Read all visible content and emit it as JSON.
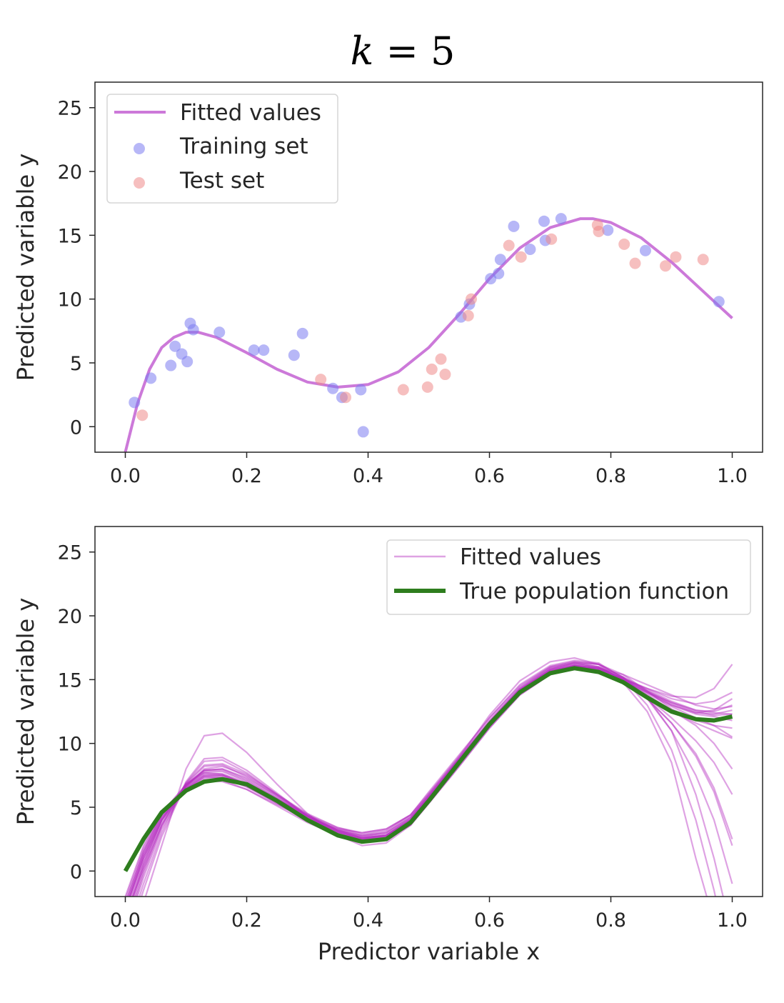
{
  "title": {
    "prefix": "k",
    "suffix": "= 5"
  },
  "chart_data": [
    {
      "type": "scatter",
      "xlabel": "",
      "ylabel": "Predicted variable y",
      "xlim": [
        -0.05,
        1.05
      ],
      "ylim": [
        -2,
        27
      ],
      "xticks": [
        "0.0",
        "0.2",
        "0.4",
        "0.6",
        "0.8",
        "1.0"
      ],
      "yticks": [
        "0",
        "5",
        "10",
        "15",
        "20",
        "25"
      ],
      "legend_position": "top-left",
      "legend": [
        "Fitted values",
        "Training set",
        "Test set"
      ],
      "colors": {
        "fitted": "#cc79d9",
        "training": "#7b7cf0",
        "test": "#ee8a8a"
      },
      "series": [
        {
          "name": "Fitted values",
          "kind": "line",
          "x": [
            0.0,
            0.02,
            0.04,
            0.06,
            0.08,
            0.1,
            0.12,
            0.15,
            0.2,
            0.25,
            0.3,
            0.35,
            0.4,
            0.45,
            0.5,
            0.55,
            0.6,
            0.65,
            0.7,
            0.75,
            0.77,
            0.8,
            0.85,
            0.9,
            0.95,
            1.0
          ],
          "y": [
            -2.0,
            1.8,
            4.5,
            6.2,
            7.0,
            7.4,
            7.4,
            7.0,
            5.8,
            4.5,
            3.5,
            3.1,
            3.3,
            4.3,
            6.2,
            8.8,
            11.6,
            14.0,
            15.6,
            16.3,
            16.3,
            16.0,
            14.8,
            12.9,
            10.7,
            8.5
          ]
        },
        {
          "name": "Training set",
          "kind": "scatter",
          "x": [
            0.015,
            0.042,
            0.075,
            0.082,
            0.093,
            0.102,
            0.107,
            0.112,
            0.155,
            0.212,
            0.228,
            0.278,
            0.292,
            0.342,
            0.357,
            0.388,
            0.392,
            0.553,
            0.567,
            0.602,
            0.615,
            0.618,
            0.64,
            0.667,
            0.69,
            0.692,
            0.718,
            0.795,
            0.857,
            0.978
          ],
          "y": [
            1.9,
            3.8,
            4.8,
            6.3,
            5.7,
            5.1,
            8.1,
            7.6,
            7.4,
            6.0,
            6.0,
            5.6,
            7.3,
            3.0,
            2.3,
            2.9,
            -0.4,
            8.6,
            9.6,
            11.6,
            12.0,
            13.1,
            15.7,
            13.9,
            16.1,
            14.6,
            16.3,
            15.4,
            13.8,
            9.8
          ]
        },
        {
          "name": "Test set",
          "kind": "scatter",
          "x": [
            0.028,
            0.322,
            0.363,
            0.458,
            0.498,
            0.505,
            0.52,
            0.527,
            0.565,
            0.57,
            0.632,
            0.652,
            0.702,
            0.778,
            0.78,
            0.822,
            0.84,
            0.89,
            0.907,
            0.952
          ],
          "y": [
            0.9,
            3.7,
            2.3,
            2.9,
            3.1,
            4.5,
            5.3,
            4.1,
            8.7,
            10.0,
            14.2,
            13.3,
            14.7,
            15.8,
            15.3,
            14.3,
            12.8,
            12.6,
            13.3,
            13.1
          ]
        }
      ]
    },
    {
      "type": "line",
      "xlabel": "Predictor variable x",
      "ylabel": "Predicted variable y",
      "xlim": [
        -0.05,
        1.05
      ],
      "ylim": [
        -2,
        27
      ],
      "xticks": [
        "0.0",
        "0.2",
        "0.4",
        "0.6",
        "0.8",
        "1.0"
      ],
      "yticks": [
        "0",
        "5",
        "10",
        "15",
        "20",
        "25"
      ],
      "legend_position": "top-right",
      "legend": [
        "Fitted values",
        "True population function"
      ],
      "colors": {
        "fitted": "#b530c0",
        "true": "#2e7d1e"
      },
      "true_function": {
        "x": [
          0.0,
          0.03,
          0.06,
          0.1,
          0.13,
          0.16,
          0.2,
          0.25,
          0.3,
          0.35,
          0.39,
          0.43,
          0.47,
          0.5,
          0.55,
          0.6,
          0.65,
          0.7,
          0.74,
          0.78,
          0.82,
          0.86,
          0.9,
          0.94,
          0.97,
          1.0
        ],
        "y": [
          0.0,
          2.5,
          4.6,
          6.3,
          7.0,
          7.2,
          6.8,
          5.5,
          4.0,
          2.8,
          2.3,
          2.5,
          3.8,
          5.5,
          8.5,
          11.5,
          14.0,
          15.5,
          15.9,
          15.6,
          14.8,
          13.6,
          12.5,
          11.9,
          11.8,
          12.1
        ]
      },
      "fitted_curves": [
        {
          "y": [
            -3.0,
            1.2,
            4.2,
            6.5,
            7.3,
            7.3,
            6.6,
            5.4,
            4.1,
            3.0,
            2.5,
            2.7,
            3.9,
            5.6,
            8.5,
            11.5,
            14.1,
            15.8,
            16.2,
            15.9,
            15.0,
            13.9,
            12.9,
            12.0,
            11.4,
            10.5
          ]
        },
        {
          "y": [
            -4.0,
            0.5,
            4.0,
            6.8,
            7.8,
            7.8,
            7.0,
            5.7,
            4.3,
            3.1,
            2.6,
            2.8,
            4.0,
            5.7,
            8.6,
            11.6,
            14.2,
            15.7,
            16.1,
            15.8,
            15.1,
            14.0,
            13.0,
            12.4,
            12.6,
            13.5
          ]
        },
        {
          "y": [
            -3.5,
            0.2,
            3.6,
            6.9,
            8.3,
            8.4,
            7.6,
            6.0,
            4.4,
            3.2,
            2.7,
            3.0,
            4.2,
            5.9,
            8.7,
            11.5,
            14.0,
            15.6,
            16.0,
            15.9,
            15.4,
            14.6,
            13.8,
            13.0,
            12.7,
            12.9
          ]
        },
        {
          "y": [
            -2.5,
            1.5,
            4.5,
            6.8,
            7.7,
            7.6,
            6.9,
            5.6,
            4.3,
            3.3,
            2.8,
            3.1,
            4.3,
            5.9,
            8.8,
            11.7,
            14.3,
            15.9,
            16.3,
            16.2,
            15.4,
            14.1,
            12.7,
            11.8,
            11.4,
            11.2
          ]
        },
        {
          "y": [
            -5.5,
            -1.0,
            3.0,
            7.0,
            8.8,
            8.9,
            7.9,
            6.1,
            4.3,
            2.9,
            2.3,
            2.6,
            3.9,
            5.8,
            8.8,
            11.8,
            14.4,
            16.0,
            16.4,
            16.2,
            15.2,
            13.6,
            11.0,
            6.0,
            1.0,
            -5.0
          ]
        },
        {
          "y": [
            -7.0,
            -2.5,
            2.0,
            8.0,
            10.6,
            10.8,
            9.3,
            6.8,
            4.5,
            2.8,
            2.0,
            2.2,
            3.6,
            5.6,
            8.9,
            12.2,
            14.9,
            16.4,
            16.7,
            16.2,
            14.8,
            12.5,
            8.5,
            1.0,
            -4.0,
            -10.0
          ]
        },
        {
          "y": [
            -4.5,
            0.0,
            3.6,
            6.7,
            7.9,
            8.0,
            7.3,
            5.9,
            4.4,
            3.2,
            2.6,
            2.8,
            4.0,
            5.8,
            8.7,
            11.7,
            14.2,
            15.8,
            16.3,
            16.0,
            15.0,
            13.5,
            11.6,
            9.2,
            6.5,
            2.5
          ]
        },
        {
          "y": [
            -2.0,
            2.0,
            4.7,
            6.5,
            7.1,
            7.0,
            6.4,
            5.2,
            4.1,
            3.3,
            3.0,
            3.3,
            4.4,
            6.0,
            8.8,
            11.6,
            14.0,
            15.4,
            15.8,
            15.6,
            15.0,
            14.3,
            13.7,
            13.6,
            14.3,
            16.2
          ]
        },
        {
          "y": [
            -3.0,
            1.0,
            4.0,
            6.4,
            7.4,
            7.4,
            6.7,
            5.3,
            3.9,
            2.8,
            2.3,
            2.5,
            3.6,
            5.3,
            8.2,
            11.2,
            13.8,
            15.4,
            15.9,
            15.6,
            14.8,
            13.6,
            12.5,
            11.6,
            11.0,
            10.4
          ]
        },
        {
          "y": [
            -5.0,
            -0.5,
            3.3,
            6.6,
            8.0,
            8.2,
            7.5,
            6.0,
            4.5,
            3.4,
            2.9,
            3.2,
            4.4,
            6.2,
            9.1,
            12.0,
            14.5,
            16.0,
            16.4,
            16.2,
            15.2,
            13.5,
            11.0,
            7.5,
            4.0,
            -1.0
          ]
        },
        {
          "y": [
            -3.5,
            0.8,
            4.0,
            6.7,
            7.7,
            7.6,
            6.8,
            5.4,
            4.0,
            2.9,
            2.4,
            2.6,
            3.8,
            5.5,
            8.4,
            11.3,
            13.9,
            15.5,
            15.9,
            15.8,
            15.1,
            14.1,
            13.2,
            12.5,
            12.2,
            12.3
          ]
        },
        {
          "y": [
            -2.8,
            1.4,
            4.4,
            6.6,
            7.5,
            7.5,
            6.8,
            5.6,
            4.3,
            3.2,
            2.7,
            2.9,
            4.1,
            5.8,
            8.6,
            11.5,
            14.1,
            15.7,
            16.1,
            15.9,
            15.2,
            14.2,
            13.3,
            12.6,
            12.5,
            13.0
          ]
        },
        {
          "y": [
            -6.0,
            -1.5,
            2.7,
            6.9,
            8.6,
            8.7,
            7.7,
            6.0,
            4.3,
            3.0,
            2.5,
            2.8,
            4.1,
            6.0,
            9.0,
            12.0,
            14.6,
            16.1,
            16.5,
            16.3,
            15.1,
            13.0,
            9.5,
            4.0,
            -1.5,
            -8.0
          ]
        },
        {
          "y": [
            -3.2,
            1.0,
            4.2,
            6.5,
            7.4,
            7.3,
            6.6,
            5.3,
            4.0,
            3.0,
            2.5,
            2.7,
            3.9,
            5.6,
            8.5,
            11.4,
            14.0,
            15.6,
            16.0,
            15.8,
            15.0,
            13.8,
            12.6,
            11.4,
            10.0,
            8.0
          ]
        },
        {
          "y": [
            -2.2,
            1.8,
            4.6,
            6.7,
            7.6,
            7.5,
            6.8,
            5.5,
            4.2,
            3.2,
            2.8,
            3.0,
            4.2,
            5.8,
            8.7,
            11.6,
            14.2,
            15.7,
            16.1,
            15.9,
            15.1,
            14.0,
            13.0,
            12.3,
            12.1,
            11.8
          ]
        },
        {
          "y": [
            -4.2,
            0.3,
            3.8,
            6.7,
            7.9,
            8.0,
            7.2,
            5.8,
            4.3,
            3.1,
            2.6,
            2.8,
            4.0,
            5.7,
            8.6,
            11.6,
            14.2,
            15.8,
            16.2,
            16.0,
            15.2,
            14.1,
            13.1,
            12.4,
            12.3,
            12.6
          ]
        },
        {
          "y": [
            -3.8,
            0.6,
            4.0,
            6.8,
            7.9,
            7.9,
            7.1,
            5.7,
            4.2,
            3.1,
            2.6,
            2.8,
            4.0,
            5.7,
            8.6,
            11.5,
            14.0,
            15.6,
            16.1,
            15.9,
            15.0,
            13.6,
            12.0,
            10.2,
            8.5,
            6.0
          ]
        },
        {
          "y": [
            -2.6,
            1.6,
            4.5,
            6.6,
            7.5,
            7.5,
            6.8,
            5.6,
            4.4,
            3.4,
            3.0,
            3.3,
            4.4,
            6.1,
            8.9,
            11.7,
            14.2,
            15.7,
            16.1,
            15.8,
            15.1,
            14.3,
            13.5,
            13.1,
            13.3,
            14.0
          ]
        },
        {
          "y": [
            -4.8,
            -0.2,
            3.5,
            6.8,
            8.2,
            8.3,
            7.4,
            5.9,
            4.3,
            3.1,
            2.5,
            2.7,
            3.9,
            5.7,
            8.7,
            11.7,
            14.3,
            15.9,
            16.3,
            16.0,
            15.0,
            13.5,
            11.6,
            9.0,
            6.2,
            2.0
          ]
        },
        {
          "y": [
            -3.0,
            1.2,
            4.3,
            6.4,
            7.2,
            7.1,
            6.4,
            5.1,
            3.8,
            2.8,
            2.3,
            2.5,
            3.6,
            5.3,
            8.2,
            11.2,
            13.8,
            15.4,
            15.8,
            15.6,
            14.9,
            14.0,
            13.2,
            12.6,
            12.4,
            12.3
          ]
        }
      ]
    }
  ]
}
